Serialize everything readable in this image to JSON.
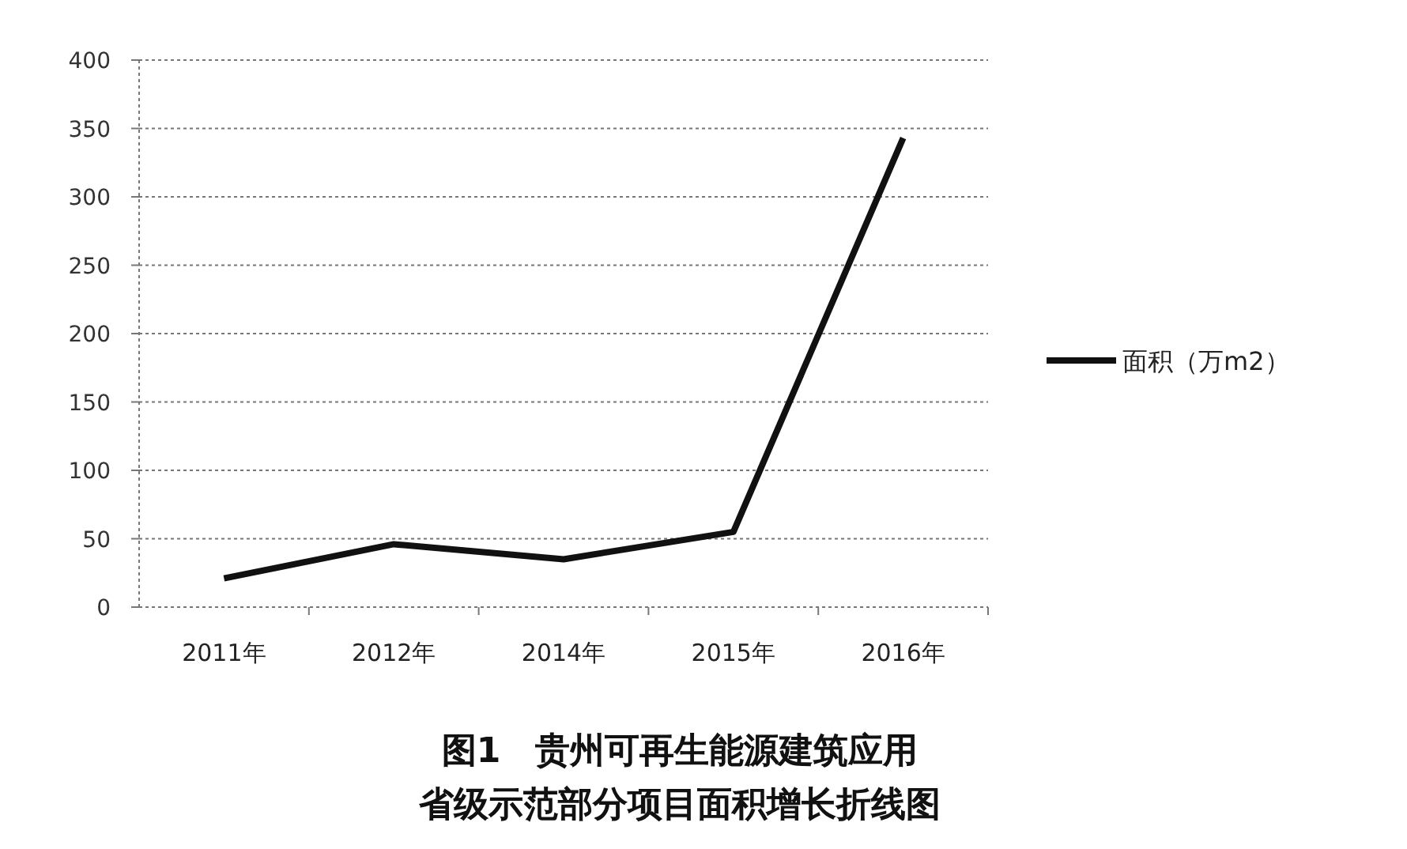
{
  "chart_data": {
    "type": "line",
    "title": "图1　贵州可再生能源建筑应用",
    "subtitle": "省级示范部分项目面积增长折线图",
    "categories": [
      "2011年",
      "2012年",
      "2014年",
      "2015年",
      "2016年"
    ],
    "series": [
      {
        "name": "面积（万m2）",
        "color": "#111111",
        "values": [
          21,
          46,
          35,
          55,
          343
        ]
      }
    ],
    "ylim": [
      0,
      400
    ],
    "yticks": [
      0,
      50,
      100,
      150,
      200,
      250,
      300,
      350,
      400
    ],
    "grid": "y",
    "legend": "right",
    "marker": "none",
    "line_style": "solid"
  }
}
